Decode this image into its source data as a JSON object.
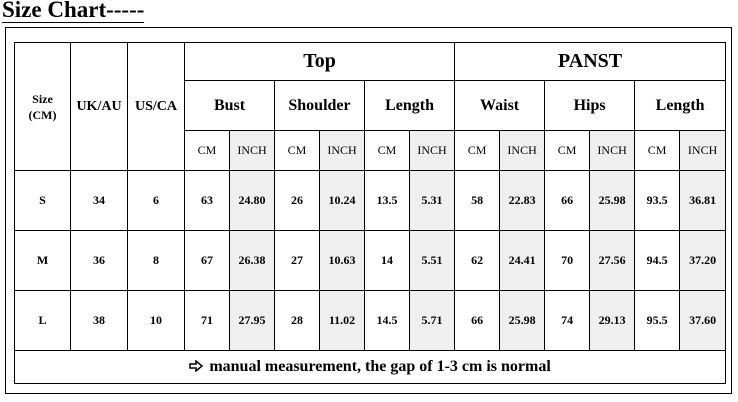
{
  "title": "Size Chart-----",
  "table": {
    "header_cells": [
      "Size\n(CM)",
      "UK/AU",
      "US/CA"
    ],
    "groups": [
      "Top",
      "PANST"
    ],
    "measures": [
      "Bust",
      "Shoulder",
      "Length",
      "Waist",
      "Hips",
      "Length"
    ],
    "units": [
      "CM",
      "INCH",
      "CM",
      "INCH",
      "CM",
      "INCH",
      "CM",
      "INCH",
      "CM",
      "INCH",
      "CM",
      "INCH"
    ],
    "rows": [
      [
        "S",
        "34",
        "6",
        "63",
        "24.80",
        "26",
        "10.24",
        "13.5",
        "5.31",
        "58",
        "22.83",
        "66",
        "25.98",
        "93.5",
        "36.81"
      ],
      [
        "M",
        "36",
        "8",
        "67",
        "26.38",
        "27",
        "10.63",
        "14",
        "5.51",
        "62",
        "24.41",
        "70",
        "27.56",
        "94.5",
        "37.20"
      ],
      [
        "L",
        "38",
        "10",
        "71",
        "27.95",
        "28",
        "11.02",
        "14.5",
        "5.71",
        "66",
        "25.98",
        "74",
        "29.13",
        "95.5",
        "37.60"
      ]
    ],
    "footer": "manual measurement, the gap of 1-3 cm is normal"
  }
}
